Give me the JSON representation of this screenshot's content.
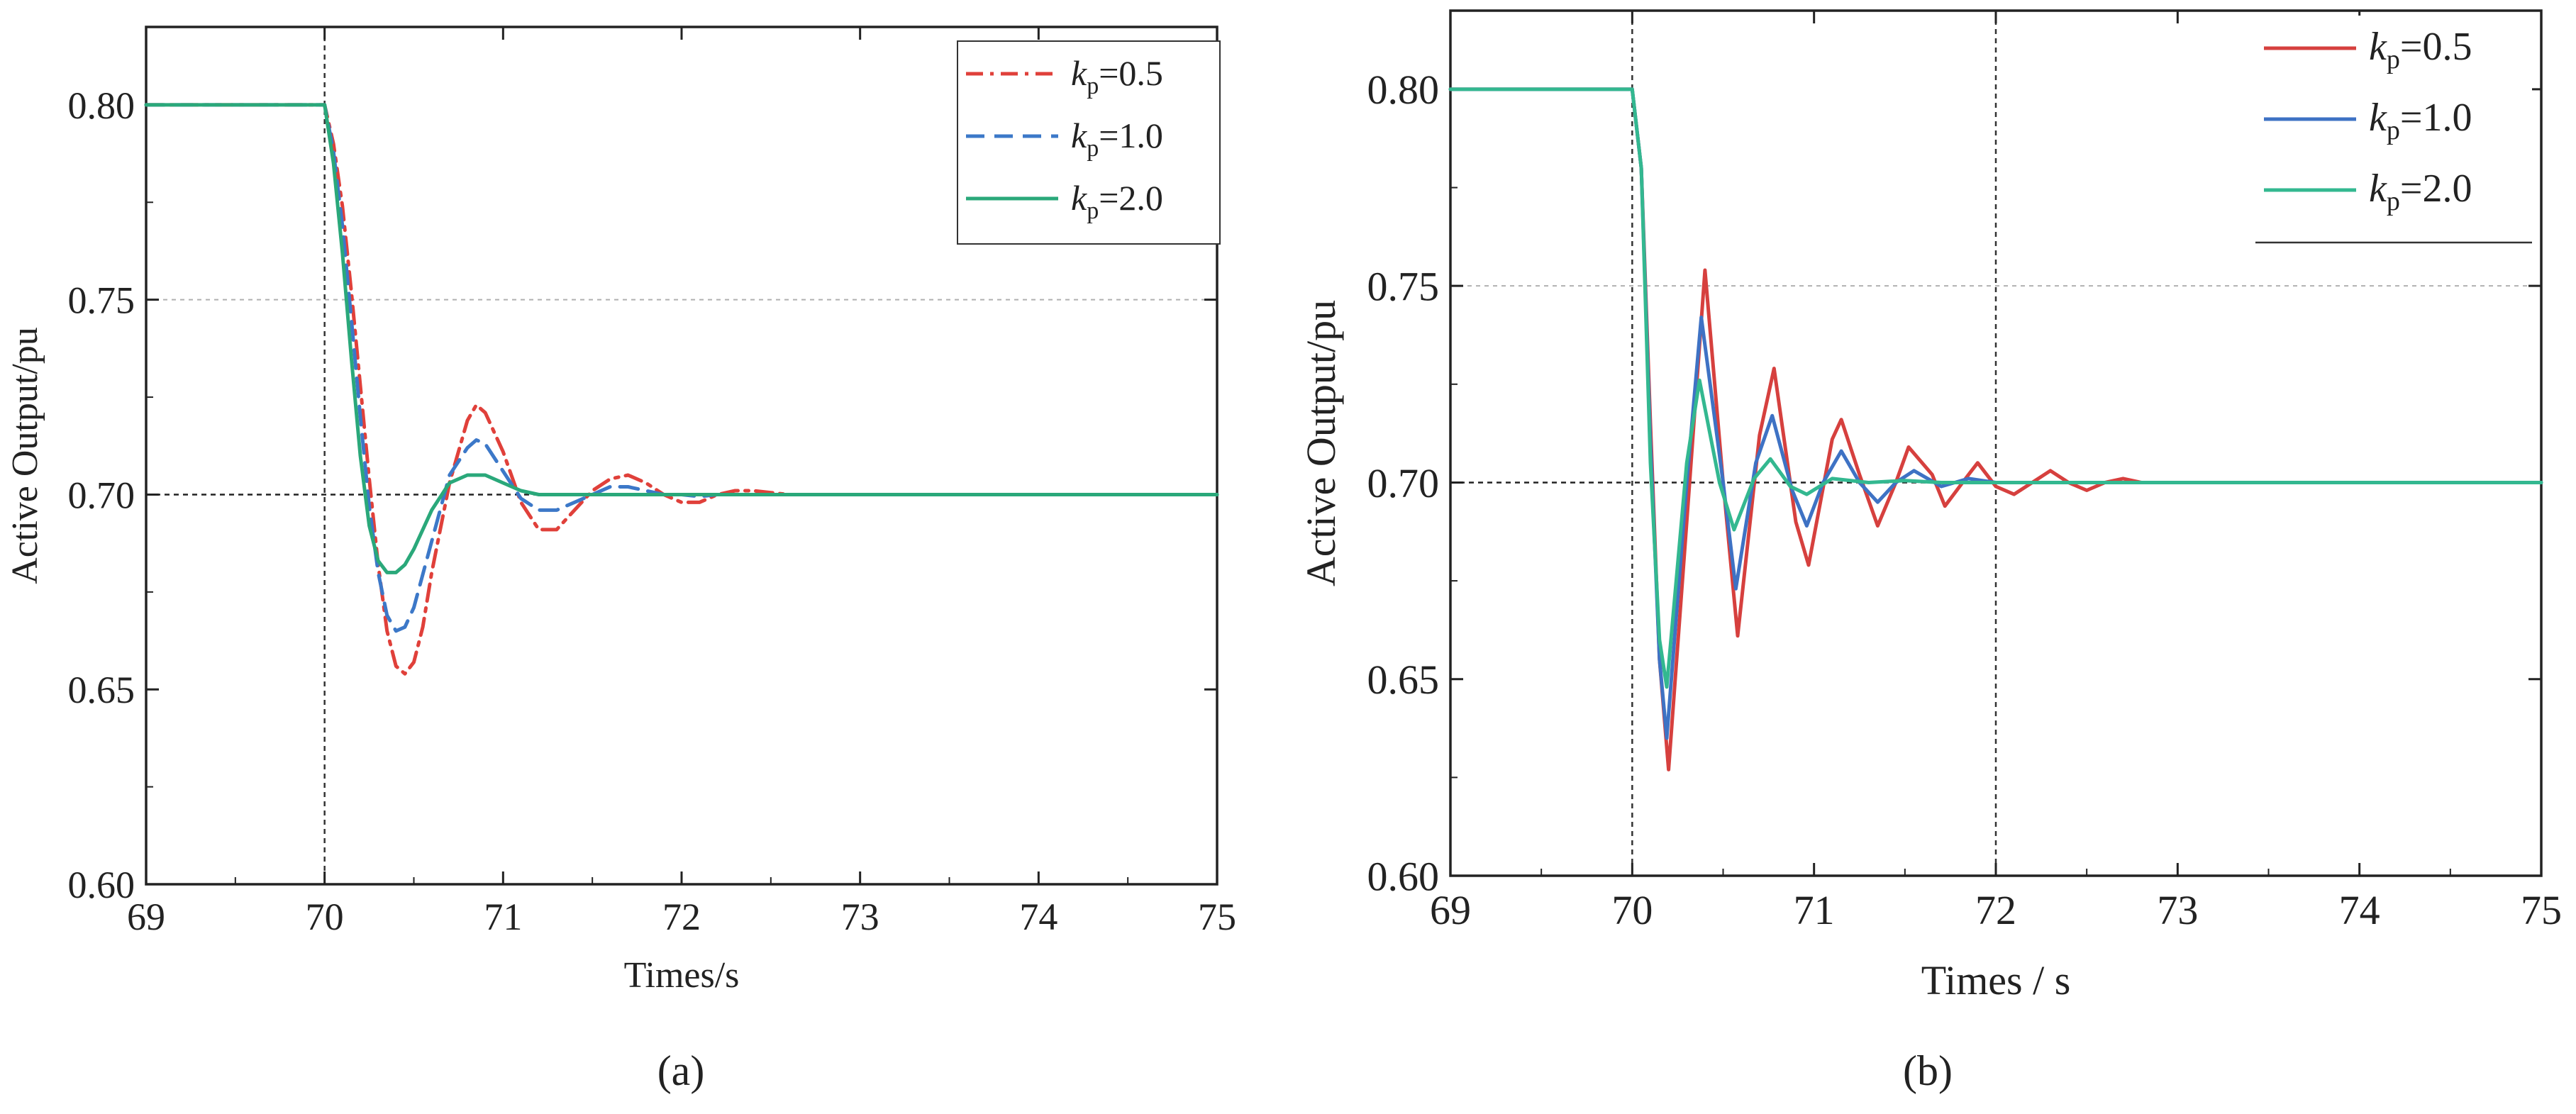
{
  "chart_data": [
    {
      "panel": "(a)",
      "type": "line",
      "xlabel": "Times/s",
      "ylabel": "Active Output/pu",
      "xlim": [
        69,
        75
      ],
      "ylim": [
        0.6,
        0.82
      ],
      "xticks": [
        "69",
        "70",
        "71",
        "72",
        "73",
        "74",
        "75"
      ],
      "yticks": [
        "0.60",
        "0.65",
        "0.70",
        "0.75",
        "0.80"
      ],
      "reference_lines": {
        "x": 70,
        "y": 0.7
      },
      "grid": "dotted at 0.70 and 0.75, x = 70",
      "legend_position": "top-right",
      "series": [
        {
          "name": "kp=0.5",
          "k": "k",
          "sub": "p",
          "value": "=0.5",
          "color": "#e0403a",
          "dash": "dash-dot",
          "x": [
            69.0,
            70.0,
            70.05,
            70.1,
            70.15,
            70.2,
            70.25,
            70.3,
            70.35,
            70.4,
            70.45,
            70.5,
            70.55,
            70.6,
            70.7,
            70.8,
            70.85,
            70.9,
            71.0,
            71.1,
            71.2,
            71.3,
            71.4,
            71.5,
            71.6,
            71.7,
            71.8,
            71.9,
            72.0,
            72.1,
            72.2,
            72.3,
            72.4,
            72.5,
            72.6,
            72.8,
            73.0,
            75.0
          ],
          "y": [
            0.8,
            0.8,
            0.79,
            0.774,
            0.752,
            0.728,
            0.704,
            0.682,
            0.665,
            0.656,
            0.654,
            0.657,
            0.666,
            0.68,
            0.703,
            0.719,
            0.723,
            0.721,
            0.711,
            0.698,
            0.691,
            0.691,
            0.696,
            0.701,
            0.704,
            0.705,
            0.703,
            0.7,
            0.698,
            0.698,
            0.7,
            0.701,
            0.701,
            0.7005,
            0.7,
            0.7,
            0.7,
            0.7
          ]
        },
        {
          "name": "kp=1.0",
          "k": "k",
          "sub": "p",
          "value": "=1.0",
          "color": "#3c78c8",
          "dash": "dashed",
          "x": [
            69.0,
            70.0,
            70.05,
            70.1,
            70.15,
            70.2,
            70.25,
            70.3,
            70.35,
            70.4,
            70.45,
            70.5,
            70.6,
            70.7,
            70.8,
            70.85,
            70.9,
            71.0,
            71.1,
            71.2,
            71.3,
            71.4,
            71.5,
            71.6,
            71.7,
            71.8,
            71.9,
            72.0,
            72.1,
            72.2,
            72.4,
            72.6,
            75.0
          ],
          "y": [
            0.8,
            0.8,
            0.788,
            0.769,
            0.745,
            0.72,
            0.697,
            0.68,
            0.669,
            0.665,
            0.666,
            0.671,
            0.688,
            0.705,
            0.712,
            0.714,
            0.713,
            0.706,
            0.699,
            0.696,
            0.696,
            0.698,
            0.7,
            0.702,
            0.702,
            0.701,
            0.7,
            0.7,
            0.6995,
            0.7,
            0.7,
            0.7,
            0.7
          ]
        },
        {
          "name": "kp=2.0",
          "k": "k",
          "sub": "p",
          "value": "=2.0",
          "color": "#2aa87a",
          "dash": "solid",
          "x": [
            69.0,
            70.0,
            70.05,
            70.1,
            70.15,
            70.2,
            70.25,
            70.3,
            70.35,
            70.4,
            70.45,
            70.5,
            70.6,
            70.7,
            70.8,
            70.9,
            71.0,
            71.1,
            71.2,
            71.3,
            71.5,
            71.7,
            72.0,
            75.0
          ],
          "y": [
            0.8,
            0.8,
            0.785,
            0.762,
            0.735,
            0.71,
            0.692,
            0.683,
            0.68,
            0.68,
            0.682,
            0.686,
            0.696,
            0.703,
            0.705,
            0.705,
            0.703,
            0.701,
            0.7,
            0.7,
            0.7,
            0.7,
            0.7,
            0.7
          ]
        }
      ]
    },
    {
      "panel": "(b)",
      "type": "line",
      "xlabel": "Times / s",
      "ylabel": "Active Output/pu",
      "xlim": [
        69,
        75
      ],
      "ylim": [
        0.6,
        0.82
      ],
      "xticks": [
        "69",
        "70",
        "71",
        "72",
        "73",
        "74",
        "75"
      ],
      "yticks": [
        "0.60",
        "0.65",
        "0.70",
        "0.75",
        "0.80"
      ],
      "reference_lines": {
        "x": [
          70,
          72
        ],
        "y": 0.7
      },
      "grid": "dotted at 0.70 and 0.75, x = 70, x = 72",
      "legend_position": "top-right",
      "series": [
        {
          "name": "kp=0.5",
          "k": "k",
          "sub": "p",
          "value": "=0.5",
          "color": "#d6403e",
          "dash": "solid",
          "x": [
            69.0,
            70.0,
            70.05,
            70.1,
            70.15,
            70.2,
            70.3,
            70.4,
            70.5,
            70.58,
            70.7,
            70.78,
            70.9,
            70.97,
            71.1,
            71.15,
            71.25,
            71.35,
            71.45,
            71.52,
            71.65,
            71.72,
            71.85,
            71.9,
            72.0,
            72.1,
            72.2,
            72.3,
            72.4,
            72.5,
            72.6,
            72.7,
            72.8,
            73.0,
            73.5,
            75.0
          ],
          "y": [
            0.8,
            0.8,
            0.78,
            0.715,
            0.655,
            0.627,
            0.69,
            0.754,
            0.7,
            0.661,
            0.712,
            0.729,
            0.69,
            0.679,
            0.711,
            0.716,
            0.702,
            0.689,
            0.7,
            0.709,
            0.702,
            0.694,
            0.702,
            0.705,
            0.699,
            0.697,
            0.7,
            0.703,
            0.7,
            0.698,
            0.7,
            0.701,
            0.7,
            0.7,
            0.7,
            0.7
          ]
        },
        {
          "name": "kp=1.0",
          "k": "k",
          "sub": "p",
          "value": "=1.0",
          "color": "#3e72c4",
          "dash": "solid",
          "x": [
            69.0,
            70.0,
            70.05,
            70.1,
            70.15,
            70.19,
            70.3,
            70.38,
            70.5,
            70.57,
            70.68,
            70.77,
            70.88,
            70.96,
            71.05,
            71.15,
            71.25,
            71.35,
            71.45,
            71.55,
            71.7,
            71.85,
            72.0,
            72.2,
            72.5,
            75.0
          ],
          "y": [
            0.8,
            0.8,
            0.78,
            0.71,
            0.655,
            0.635,
            0.7,
            0.742,
            0.7,
            0.673,
            0.705,
            0.717,
            0.698,
            0.689,
            0.7,
            0.708,
            0.7,
            0.695,
            0.7,
            0.703,
            0.699,
            0.701,
            0.7,
            0.7,
            0.7,
            0.7
          ]
        },
        {
          "name": "kp=2.0",
          "k": "k",
          "sub": "p",
          "value": "=2.0",
          "color": "#33b890",
          "dash": "solid",
          "x": [
            69.0,
            70.0,
            70.05,
            70.1,
            70.15,
            70.19,
            70.3,
            70.37,
            70.48,
            70.56,
            70.67,
            70.76,
            70.87,
            70.96,
            71.1,
            71.3,
            71.5,
            71.7,
            72.0,
            75.0
          ],
          "y": [
            0.8,
            0.8,
            0.78,
            0.705,
            0.66,
            0.648,
            0.705,
            0.726,
            0.7,
            0.688,
            0.701,
            0.706,
            0.699,
            0.697,
            0.701,
            0.7,
            0.7005,
            0.7,
            0.7,
            0.7
          ]
        }
      ]
    }
  ]
}
